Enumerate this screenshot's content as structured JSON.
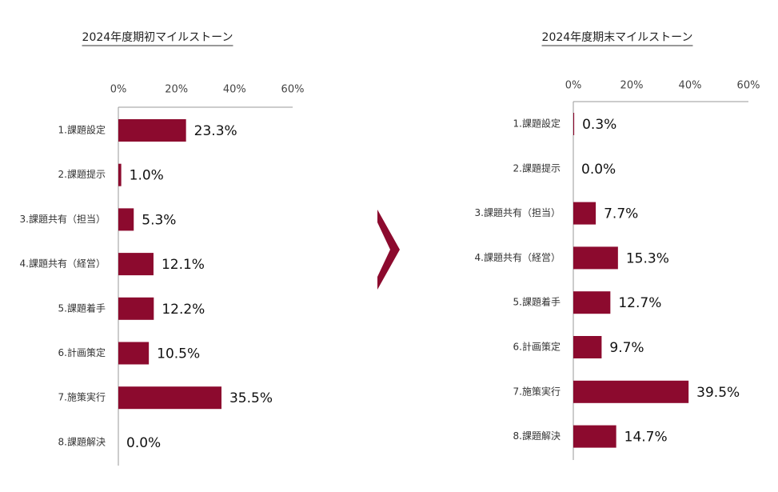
{
  "chart_data": [
    {
      "type": "hbar",
      "title": "2024年度期初マイルストーン",
      "categories": [
        "1.課題設定",
        "2.課題提示",
        "3.課題共有（担当）",
        "4.課題共有（経営）",
        "5.課題着手",
        "6.計画策定",
        "7.施策実行",
        "8.課題解決"
      ],
      "values": [
        23.3,
        1.0,
        5.3,
        12.1,
        12.2,
        10.5,
        35.5,
        0.0
      ],
      "value_labels": [
        "23.3%",
        "1.0%",
        "5.3%",
        "12.1%",
        "12.2%",
        "10.5%",
        "35.5%",
        "0.0%"
      ],
      "color": "#8c0a2e",
      "xlim": [
        0,
        60
      ],
      "xticks": [
        {
          "value": 0,
          "label": "0%"
        },
        {
          "value": 20,
          "label": "20%"
        },
        {
          "value": 40,
          "label": "40%"
        },
        {
          "value": 60,
          "label": "60%"
        }
      ]
    },
    {
      "type": "hbar",
      "title": "2024年度期末マイルストーン",
      "categories": [
        "1.課題設定",
        "2.課題提示",
        "3.課題共有（担当）",
        "4.課題共有（経営）",
        "5.課題着手",
        "6.計画策定",
        "7.施策実行",
        "8.課題解決"
      ],
      "values": [
        0.3,
        0.0,
        7.7,
        15.3,
        12.7,
        9.7,
        39.5,
        14.7
      ],
      "value_labels": [
        "0.3%",
        "0.0%",
        "7.7%",
        "15.3%",
        "12.7%",
        "9.7%",
        "39.5%",
        "14.7%"
      ],
      "color": "#8c0a2e",
      "xlim": [
        0,
        60
      ],
      "xticks": [
        {
          "value": 0,
          "label": "0%"
        },
        {
          "value": 20,
          "label": "20%"
        },
        {
          "value": 40,
          "label": "40%"
        },
        {
          "value": 60,
          "label": "60%"
        }
      ]
    }
  ]
}
